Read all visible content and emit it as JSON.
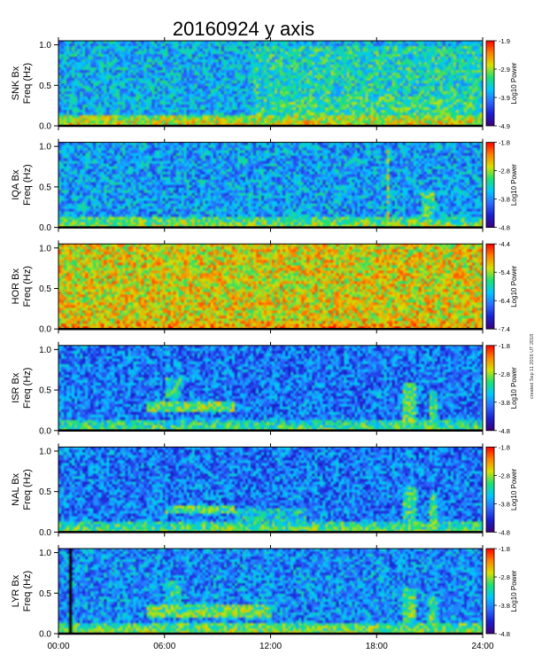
{
  "chart_data": {
    "type": "heatmap",
    "title": "20160924 y axis",
    "x_ticks": [
      "00:00",
      "06:00",
      "12:00",
      "18:00",
      "24:00"
    ],
    "xlim_hours": [
      0,
      24
    ],
    "colormap": [
      "#3a0078",
      "#1a1fd0",
      "#2b6cff",
      "#00c8ff",
      "#20e070",
      "#d8e000",
      "#ff8000",
      "#ff0000"
    ],
    "panels": [
      {
        "station": "SNK",
        "ylabel_station": "SNK Bx",
        "ylabel_freq": "Freq (Hz)",
        "ylim": [
          0,
          1.05
        ],
        "y_ticks": [
          "0.0",
          "0.5",
          "1.0"
        ],
        "colorbar_label": "Log10 Power",
        "colorbar_ticks": [
          "-1.9",
          "-2.9",
          "-3.9",
          "-4.9"
        ],
        "colorbar_range": [
          -4.9,
          -1.9
        ],
        "background_level": -3.7,
        "low_freq_level": -3.0,
        "features": [
          {
            "t0": 11,
            "t1": 24,
            "f0": 0.05,
            "f1": 0.35,
            "level": -3.3
          },
          {
            "t0": 11,
            "t1": 24,
            "f0": 0.35,
            "f1": 1.0,
            "level": -3.4
          }
        ]
      },
      {
        "station": "IQA",
        "ylabel_station": "IQA Bx",
        "ylabel_freq": "Freq (Hz)",
        "ylim": [
          0,
          1.05
        ],
        "y_ticks": [
          "0.0",
          "0.5",
          "1.0"
        ],
        "colorbar_label": "Log10 Power",
        "colorbar_ticks": [
          "-1.8",
          "-2.8",
          "-3.8",
          "-4.8"
        ],
        "colorbar_range": [
          -4.8,
          -1.8
        ],
        "background_level": -3.7,
        "low_freq_level": -3.2,
        "features": [
          {
            "t0": 18.5,
            "t1": 18.7,
            "f0": 0.0,
            "f1": 0.95,
            "level": -2.9
          },
          {
            "t0": 20.5,
            "t1": 21.3,
            "f0": 0.0,
            "f1": 0.45,
            "level": -3.1
          }
        ]
      },
      {
        "station": "HOR",
        "ylabel_station": "HOR Bx",
        "ylabel_freq": "Freq (Hz)",
        "ylim": [
          0,
          1.05
        ],
        "y_ticks": [
          "0.0",
          "0.5",
          "1.0"
        ],
        "colorbar_label": "Log10 Power",
        "colorbar_ticks": [
          "-4.4",
          "-5.4",
          "-6.4",
          "-7.4"
        ],
        "colorbar_range": [
          -7.4,
          -4.4
        ],
        "background_level": -5.2,
        "low_freq_level": -5.2,
        "features": []
      },
      {
        "station": "ISR",
        "ylabel_station": "ISR Bx",
        "ylabel_freq": "Freq (Hz)",
        "ylim": [
          0,
          1.05
        ],
        "y_ticks": [
          "0.0",
          "0.5",
          "1.0"
        ],
        "colorbar_label": "Log10 Power",
        "colorbar_ticks": [
          "-1.8",
          "-2.8",
          "-3.8",
          "-4.8"
        ],
        "colorbar_range": [
          -4.8,
          -1.8
        ],
        "background_level": -3.9,
        "low_freq_level": -3.4,
        "features": [
          {
            "t0": 5,
            "t1": 10,
            "f0": 0.22,
            "f1": 0.35,
            "level": -3.0
          },
          {
            "t0": 6,
            "t1": 7,
            "f0": 0.4,
            "f1": 0.65,
            "level": -3.3
          },
          {
            "t0": 19.5,
            "t1": 20.2,
            "f0": 0.0,
            "f1": 0.6,
            "level": -3.1
          },
          {
            "t0": 21,
            "t1": 21.5,
            "f0": 0.0,
            "f1": 0.5,
            "level": -3.2
          }
        ]
      },
      {
        "station": "NAL",
        "ylabel_station": "NAL Bx",
        "ylabel_freq": "Freq (Hz)",
        "ylim": [
          0,
          1.05
        ],
        "y_ticks": [
          "0.0",
          "0.5",
          "1.0"
        ],
        "colorbar_label": "Log10 Power",
        "colorbar_ticks": [
          "-1.8",
          "-2.8",
          "-3.8",
          "-4.8"
        ],
        "colorbar_range": [
          -4.8,
          -1.8
        ],
        "background_level": -3.9,
        "low_freq_level": -3.3,
        "features": [
          {
            "t0": 6,
            "t1": 10,
            "f0": 0.22,
            "f1": 0.32,
            "level": -3.1
          },
          {
            "t0": 10,
            "t1": 14,
            "f0": 0.05,
            "f1": 0.3,
            "level": -3.4
          },
          {
            "t0": 19.5,
            "t1": 20.2,
            "f0": 0.0,
            "f1": 0.55,
            "level": -3.2
          },
          {
            "t0": 21,
            "t1": 21.5,
            "f0": 0.0,
            "f1": 0.45,
            "level": -3.2
          }
        ]
      },
      {
        "station": "LYR",
        "ylabel_station": "LYR Bx",
        "ylabel_freq": "Freq (Hz)",
        "ylim": [
          0,
          1.05
        ],
        "y_ticks": [
          "0.0",
          "0.5",
          "1.0"
        ],
        "colorbar_label": "Log10 Power",
        "colorbar_ticks": [
          "-1.8",
          "-2.8",
          "-3.8",
          "-4.8"
        ],
        "colorbar_range": [
          -4.8,
          -1.8
        ],
        "background_level": -3.8,
        "low_freq_level": -3.2,
        "data_gap": [
          0.6,
          0.75
        ],
        "features": [
          {
            "t0": 5,
            "t1": 12,
            "f0": 0.2,
            "f1": 0.35,
            "level": -3.0
          },
          {
            "t0": 6,
            "t1": 7,
            "f0": 0.4,
            "f1": 0.65,
            "level": -3.3
          },
          {
            "t0": 19.5,
            "t1": 20.2,
            "f0": 0.0,
            "f1": 0.55,
            "level": -3.1
          },
          {
            "t0": 21,
            "t1": 21.5,
            "f0": 0.0,
            "f1": 0.45,
            "level": -3.1
          }
        ]
      }
    ]
  },
  "side_note": "created Sep 11 2016 UT 2018"
}
